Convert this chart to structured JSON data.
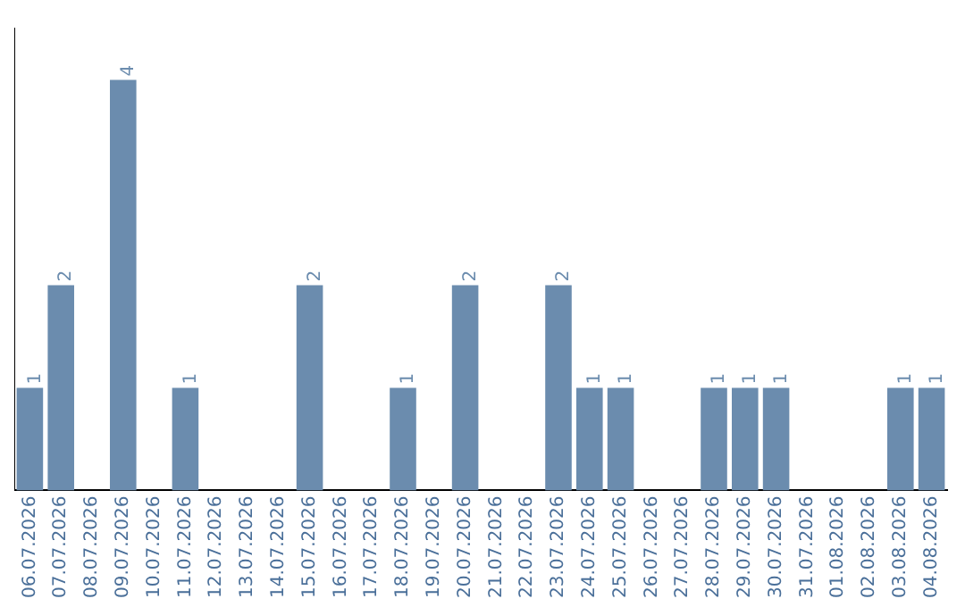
{
  "chart_data": {
    "type": "bar",
    "categories": [
      "06.07.2026",
      "07.07.2026",
      "08.07.2026",
      "09.07.2026",
      "10.07.2026",
      "11.07.2026",
      "12.07.2026",
      "13.07.2026",
      "14.07.2026",
      "15.07.2026",
      "16.07.2026",
      "17.07.2026",
      "18.07.2026",
      "19.07.2026",
      "20.07.2026",
      "21.07.2026",
      "22.07.2026",
      "23.07.2026",
      "24.07.2026",
      "25.07.2026",
      "26.07.2026",
      "27.07.2026",
      "28.07.2026",
      "29.07.2026",
      "30.07.2026",
      "31.07.2026",
      "01.08.2026",
      "02.08.2026",
      "03.08.2026",
      "04.08.2026"
    ],
    "values": [
      1,
      2,
      0,
      4,
      0,
      1,
      0,
      0,
      0,
      2,
      0,
      0,
      1,
      0,
      2,
      0,
      0,
      2,
      1,
      1,
      0,
      0,
      1,
      1,
      1,
      0,
      0,
      0,
      1,
      1
    ],
    "value_labels": [
      "1",
      "2",
      null,
      "4",
      null,
      "1",
      null,
      null,
      null,
      "2",
      null,
      null,
      "1",
      null,
      "2",
      null,
      null,
      "2",
      "1",
      "1",
      null,
      null,
      "1",
      "1",
      "1",
      null,
      null,
      null,
      "1",
      "1"
    ],
    "color": "#6b8cae",
    "tick_labels": "x",
    "grid": false,
    "legend": false
  }
}
